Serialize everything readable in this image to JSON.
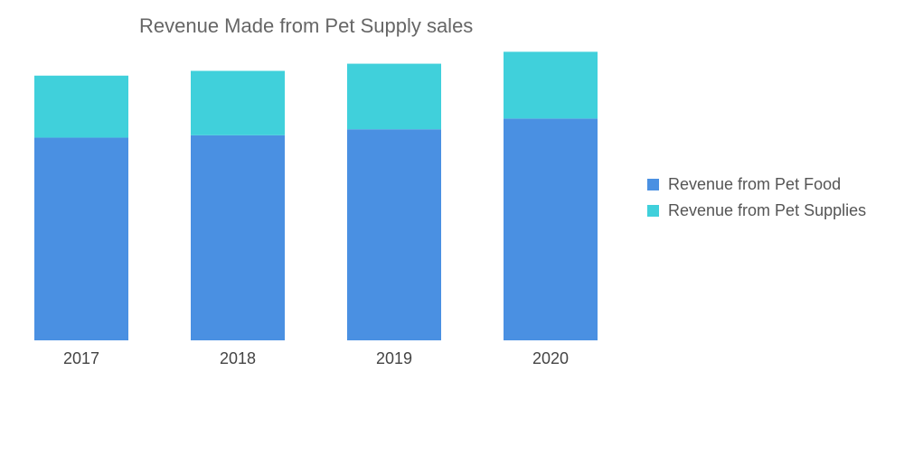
{
  "chart_data": {
    "type": "bar",
    "stacked": true,
    "title": "Revenue Made from Pet Supply sales",
    "categories": [
      "2017",
      "2018",
      "2019",
      "2020"
    ],
    "series": [
      {
        "name": "Revenue from Pet Food",
        "color": "#4a90e2",
        "values": [
          170,
          172,
          177,
          186
        ]
      },
      {
        "name": "Revenue from Pet Supplies",
        "color": "#40d0db",
        "values": [
          52,
          54,
          55,
          56
        ]
      }
    ],
    "ylim": [
      0,
      240
    ],
    "xlabel": "",
    "ylabel": "",
    "grid": false,
    "legend_position": "right"
  }
}
